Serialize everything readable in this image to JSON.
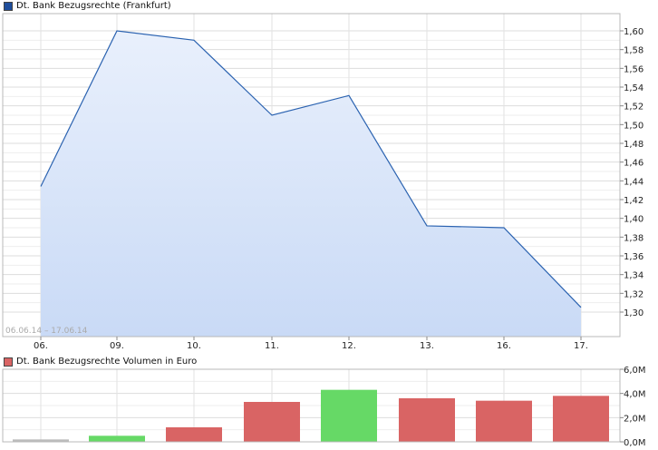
{
  "chart_data": [
    {
      "type": "area",
      "title": "Dt. Bank Bezugsrechte (Frankfurt)",
      "legend_color": "#1f4e9c",
      "line_color": "#2a62b0",
      "fill_top": "#e9f0fc",
      "fill_bottom": "#c9daf6",
      "date_range": "06.06.14 – 17.06.14",
      "categories": [
        "06.",
        "09.",
        "10.",
        "11.",
        "12.",
        "13.",
        "16.",
        "17."
      ],
      "values": [
        1.434,
        1.6,
        1.59,
        1.51,
        1.531,
        1.392,
        1.39,
        1.305
      ],
      "ylim": [
        1.28,
        1.62
      ],
      "yticks": [
        1.3,
        1.32,
        1.34,
        1.36,
        1.38,
        1.4,
        1.42,
        1.44,
        1.46,
        1.48,
        1.5,
        1.52,
        1.54,
        1.56,
        1.58,
        1.6
      ],
      "ytick_labels": [
        "1,30",
        "1,32",
        "1,34",
        "1,36",
        "1,38",
        "1,40",
        "1,42",
        "1,44",
        "1,46",
        "1,48",
        "1,50",
        "1,52",
        "1,54",
        "1,56",
        "1,58",
        "1,60"
      ],
      "grid": true
    },
    {
      "type": "bar",
      "title": "Dt. Bank Bezugsrechte Volumen in Euro",
      "legend_color": "#d96464",
      "categories": [
        "06.",
        "09.",
        "10.",
        "11.",
        "12.",
        "13.",
        "16.",
        "17."
      ],
      "values": [
        0.2,
        0.5,
        1.2,
        3.3,
        4.3,
        3.6,
        3.4,
        3.8
      ],
      "bar_colors": [
        "#bbbbbb",
        "#66d966",
        "#d96464",
        "#d96464",
        "#66d966",
        "#d96464",
        "#d96464",
        "#d96464"
      ],
      "ylim": [
        0,
        6
      ],
      "yticks": [
        0,
        2,
        4,
        6
      ],
      "ytick_labels": [
        "0,0M",
        "2,0M",
        "4,0M",
        "6,0M"
      ],
      "grid": true
    }
  ]
}
